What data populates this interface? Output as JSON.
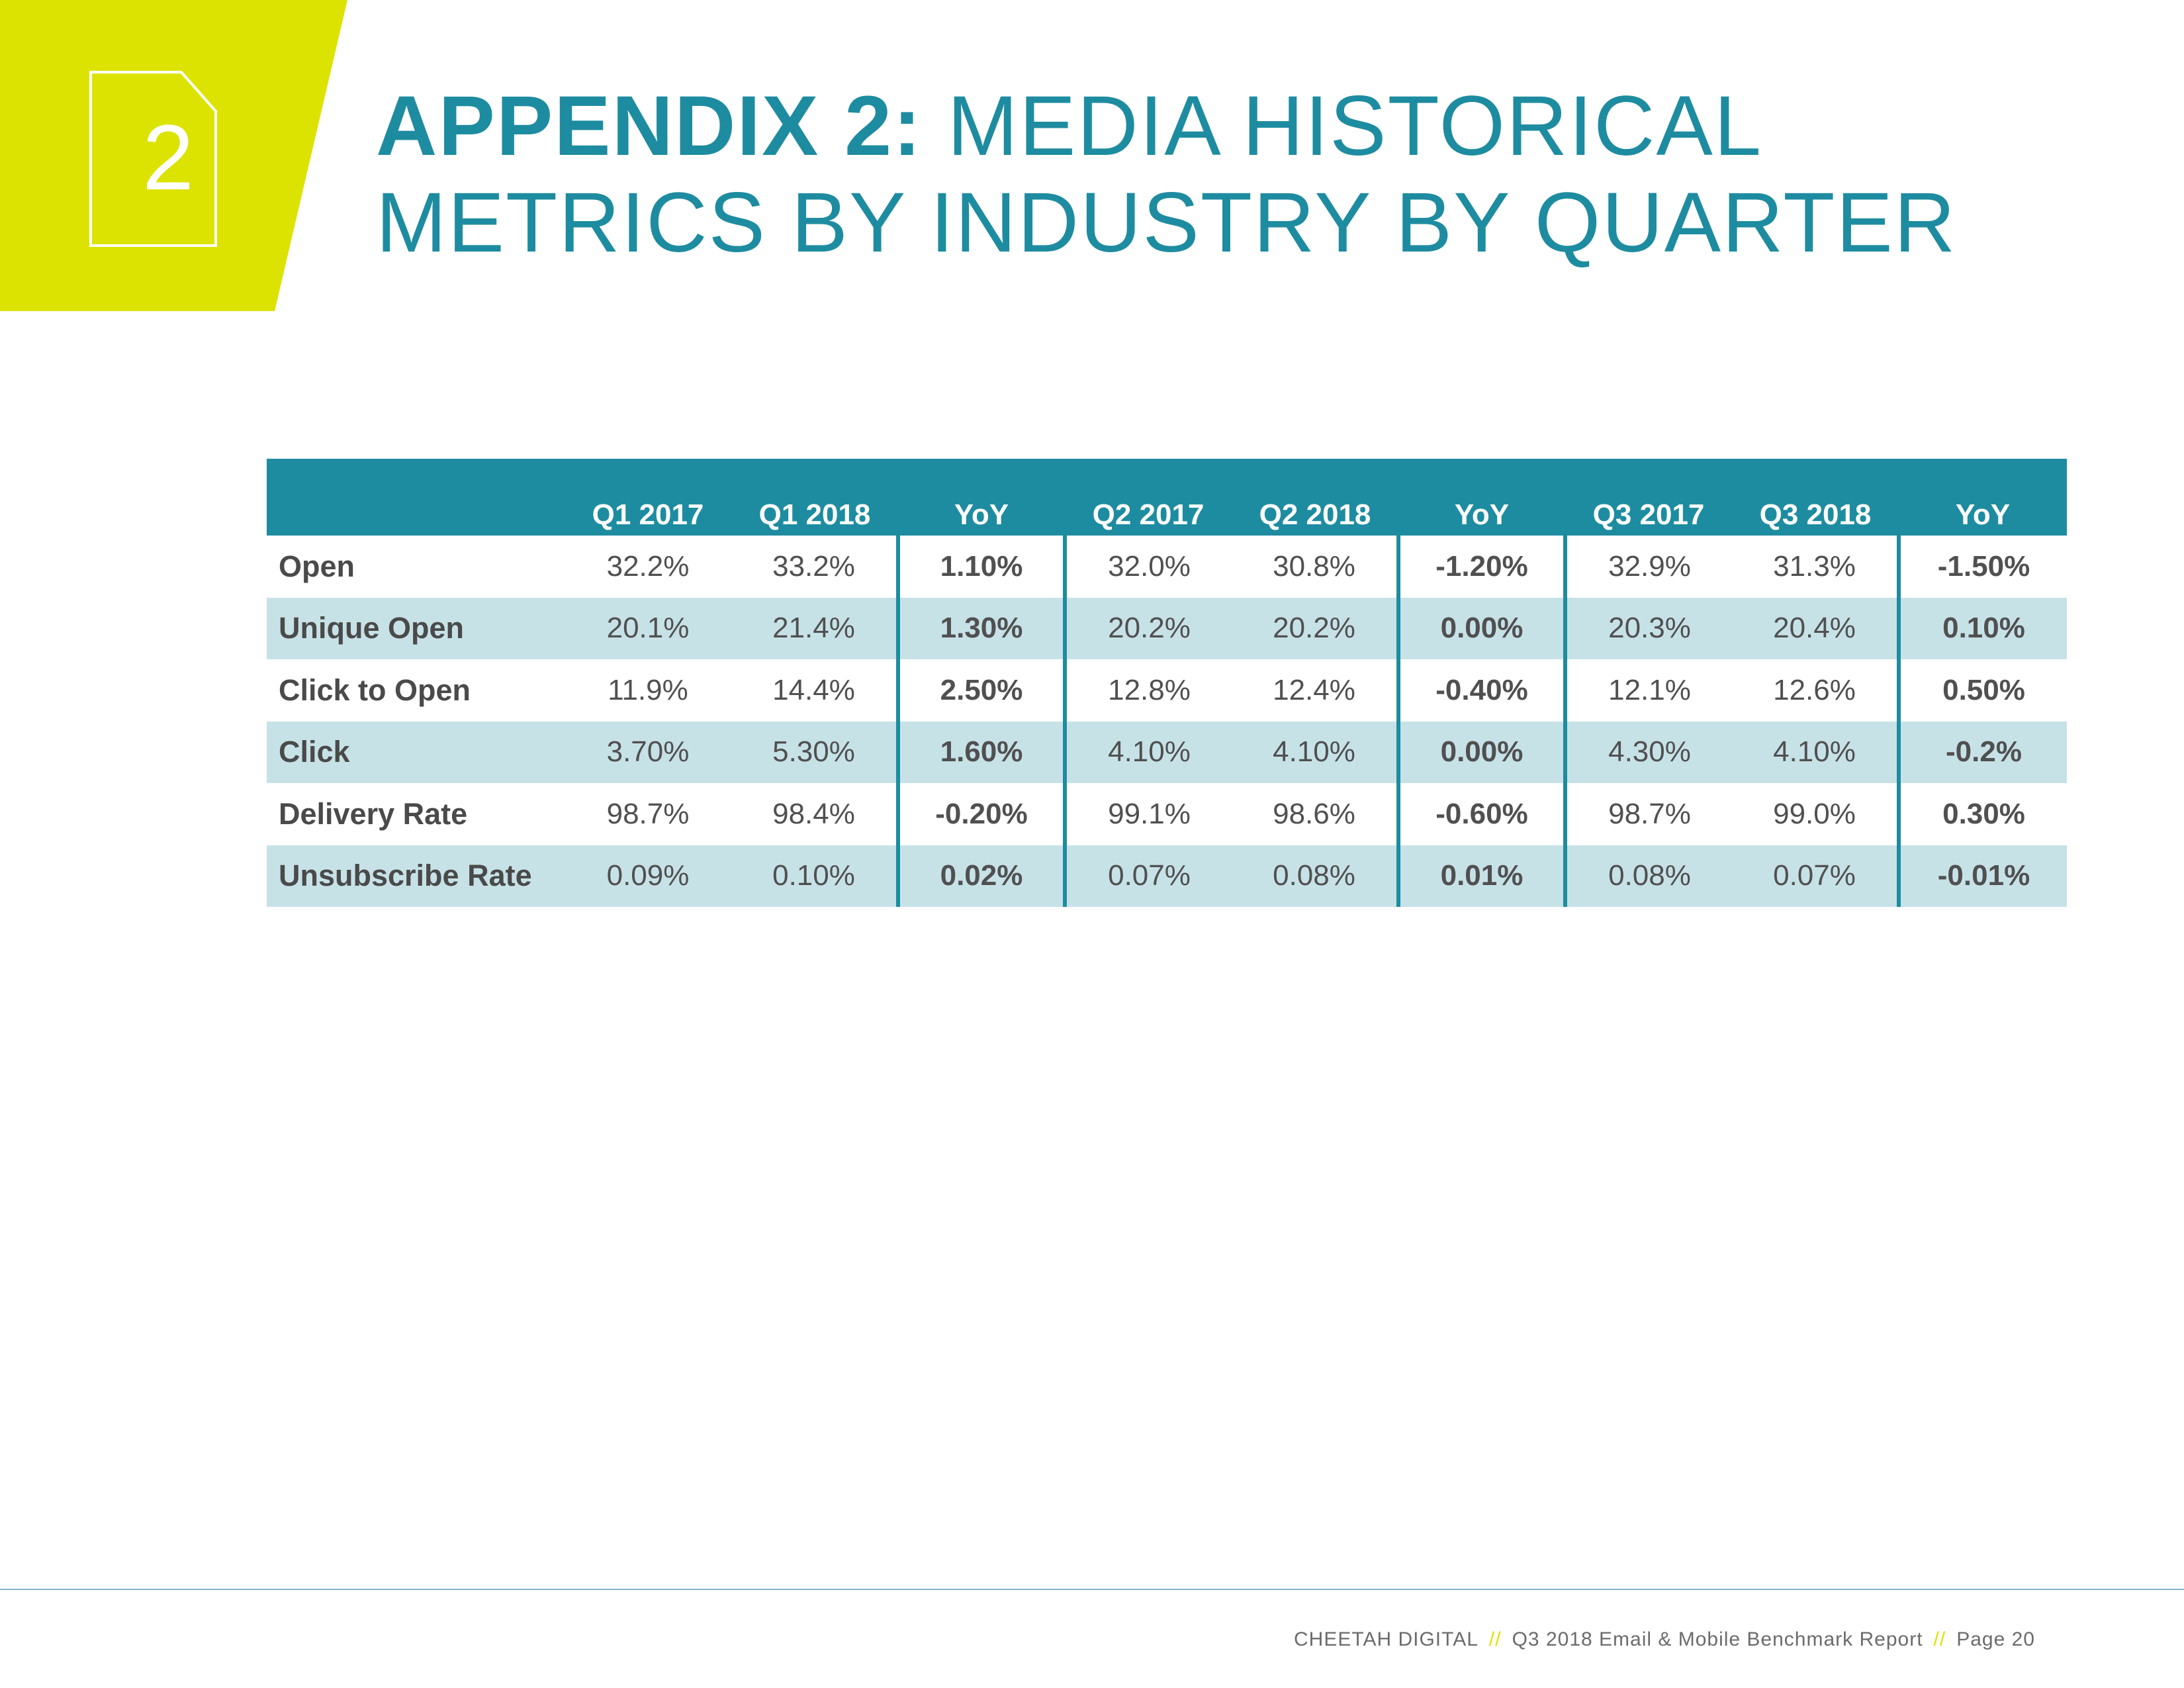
{
  "badge": {
    "number": "2",
    "icon": "document-icon"
  },
  "title": {
    "bold": "APPENDIX 2:",
    "rest_line1": "MEDIA HISTORICAL",
    "line2": "METRICS BY INDUSTRY BY QUARTER"
  },
  "colors": {
    "accent": "#1e8ca0",
    "badge": "#dde300",
    "positive": "#1e8ca0",
    "negative": "#e8314a",
    "alt_row": "#c7e2e7"
  },
  "table": {
    "headers": [
      "",
      "Q1 2017",
      "Q1 2018",
      "YoY",
      "Q2 2017",
      "Q2 2018",
      "YoY",
      "Q3 2017",
      "Q3 2018",
      "YoY"
    ],
    "rows": [
      {
        "label": "Open",
        "q1_2017": "32.2%",
        "q1_2018": "33.2%",
        "q1_yoy": "1.10%",
        "q1_yoy_sign": "pos",
        "q2_2017": "32.0%",
        "q2_2018": "30.8%",
        "q2_yoy": "-1.20%",
        "q2_yoy_sign": "neg",
        "q3_2017": "32.9%",
        "q3_2018": "31.3%",
        "q3_yoy": "-1.50%",
        "q3_yoy_sign": "neg"
      },
      {
        "label": "Unique Open",
        "q1_2017": "20.1%",
        "q1_2018": "21.4%",
        "q1_yoy": "1.30%",
        "q1_yoy_sign": "pos",
        "q2_2017": "20.2%",
        "q2_2018": "20.2%",
        "q2_yoy": "0.00%",
        "q2_yoy_sign": "pos",
        "q3_2017": "20.3%",
        "q3_2018": "20.4%",
        "q3_yoy": "0.10%",
        "q3_yoy_sign": "pos"
      },
      {
        "label": "Click to Open",
        "q1_2017": "11.9%",
        "q1_2018": "14.4%",
        "q1_yoy": "2.50%",
        "q1_yoy_sign": "pos",
        "q2_2017": "12.8%",
        "q2_2018": "12.4%",
        "q2_yoy": "-0.40%",
        "q2_yoy_sign": "neg",
        "q3_2017": "12.1%",
        "q3_2018": "12.6%",
        "q3_yoy": "0.50%",
        "q3_yoy_sign": "pos"
      },
      {
        "label": "Click",
        "q1_2017": "3.70%",
        "q1_2018": "5.30%",
        "q1_yoy": "1.60%",
        "q1_yoy_sign": "pos",
        "q2_2017": "4.10%",
        "q2_2018": "4.10%",
        "q2_yoy": "0.00%",
        "q2_yoy_sign": "pos",
        "q3_2017": "4.30%",
        "q3_2018": "4.10%",
        "q3_yoy": "-0.2%",
        "q3_yoy_sign": "neg"
      },
      {
        "label": "Delivery Rate",
        "q1_2017": "98.7%",
        "q1_2018": "98.4%",
        "q1_yoy": "-0.20%",
        "q1_yoy_sign": "neg",
        "q2_2017": "99.1%",
        "q2_2018": "98.6%",
        "q2_yoy": "-0.60%",
        "q2_yoy_sign": "neg",
        "q3_2017": "98.7%",
        "q3_2018": "99.0%",
        "q3_yoy": "0.30%",
        "q3_yoy_sign": "pos"
      },
      {
        "label": "Unsubscribe Rate",
        "q1_2017": "0.09%",
        "q1_2018": "0.10%",
        "q1_yoy": "0.02%",
        "q1_yoy_sign": "neg",
        "q2_2017": "0.07%",
        "q2_2018": "0.08%",
        "q2_yoy": "0.01%",
        "q2_yoy_sign": "neg",
        "q3_2017": "0.08%",
        "q3_2018": "0.07%",
        "q3_yoy": "-0.01%",
        "q3_yoy_sign": "pos"
      }
    ]
  },
  "footer": {
    "brand": "CHEETAH DIGITAL",
    "separator": "//",
    "report": "Q3 2018 Email & Mobile Benchmark Report",
    "page": "Page 20"
  }
}
